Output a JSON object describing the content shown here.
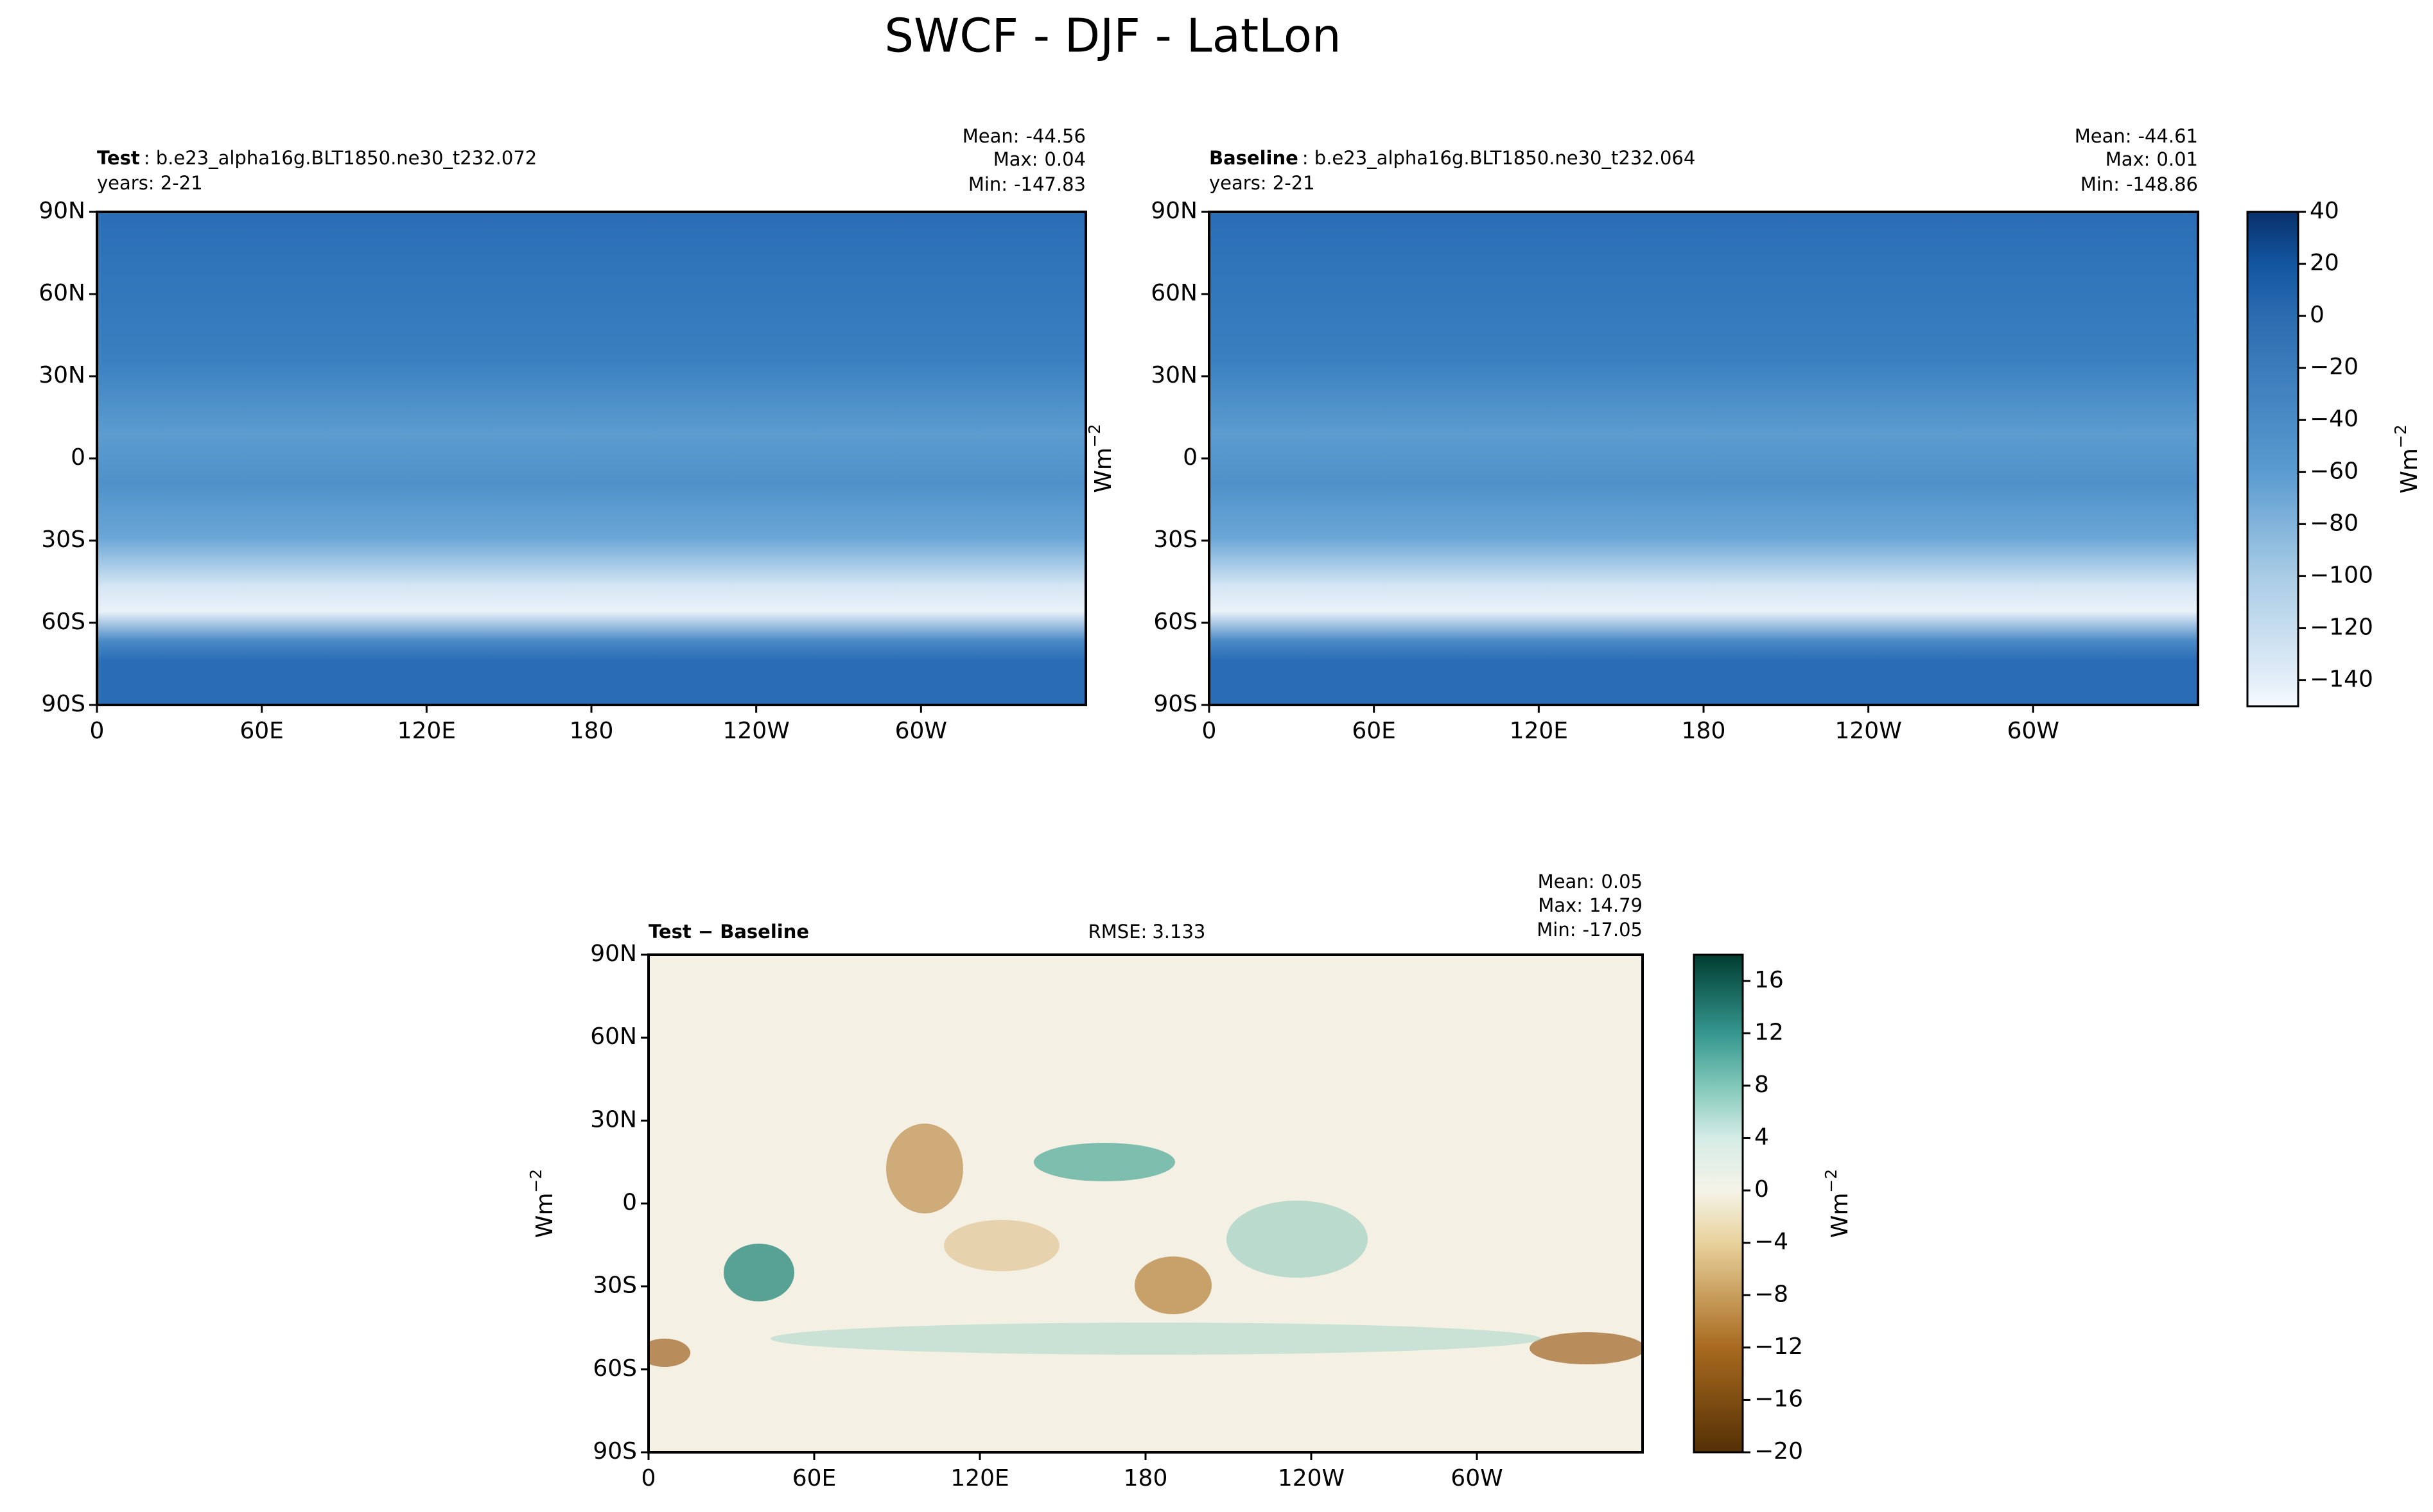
{
  "chart_data": {
    "type": "map",
    "title": "SWCF - DJF - LatLon",
    "xlim": [
      0,
      360
    ],
    "ylim": [
      -90,
      90
    ],
    "xticks": [
      0,
      {
        "value": 60,
        "label": "60E"
      },
      {
        "value": 120,
        "label": "120E"
      },
      180,
      {
        "value": 240,
        "label": "120W"
      },
      {
        "value": 300,
        "label": "60W"
      }
    ],
    "yticks": [
      {
        "value": -90,
        "label": "90S"
      },
      {
        "value": -60,
        "label": "60S"
      },
      {
        "value": -30,
        "label": "30S"
      },
      0,
      {
        "value": 30,
        "label": "30N"
      },
      {
        "value": 60,
        "label": "60N"
      },
      {
        "value": 90,
        "label": "90N"
      }
    ],
    "units": {
      "base": "Wm",
      "exp": "−2"
    },
    "panels": [
      {
        "label": "Test",
        "case": ": b.e23_alpha16g.BLT1850.ne30_t232.072",
        "years": "years: 2-21",
        "stats": [
          {
            "label": "Mean:",
            "value": -44.56
          },
          {
            "label": "Max:",
            "value": 0.04
          },
          {
            "label": "Min:",
            "value": -147.83
          }
        ]
      },
      {
        "label": "Baseline",
        "case": ": b.e23_alpha16g.BLT1850.ne30_t232.064",
        "years": "years: 2-21",
        "stats": [
          {
            "label": "Mean:",
            "value": -44.61
          },
          {
            "label": "Max:",
            "value": 0.01
          },
          {
            "label": "Min:",
            "value": -148.86
          }
        ]
      },
      {
        "label": "Test − Baseline",
        "rmse": {
          "label": "RMSE:",
          "value": 3.133
        },
        "stats": [
          {
            "label": "Mean:",
            "value": 0.05
          },
          {
            "label": "Max:",
            "value": 14.79
          },
          {
            "label": "Min:",
            "value": -17.05
          }
        ]
      }
    ],
    "colorbars": [
      {
        "clim": [
          -150,
          40
        ],
        "ticks": [
          {
            "value": 40,
            "label": "40"
          },
          {
            "value": 20,
            "label": "20"
          },
          {
            "value": 0,
            "label": "0"
          },
          {
            "value": -20,
            "label": "−20"
          },
          {
            "value": -40,
            "label": "−40"
          },
          {
            "value": -60,
            "label": "−60"
          },
          {
            "value": -80,
            "label": "−80"
          },
          {
            "value": -100,
            "label": "−100"
          },
          {
            "value": -120,
            "label": "−120"
          },
          {
            "value": -140,
            "label": "−140"
          }
        ],
        "stops": [
          {
            "value": 40,
            "color": "#08306b"
          },
          {
            "value": 20,
            "color": "#1356a0"
          },
          {
            "value": 0,
            "color": "#2b6cb0"
          },
          {
            "value": -60,
            "color": "#5a9bd0"
          },
          {
            "value": -100,
            "color": "#a9cce5"
          },
          {
            "value": -140,
            "color": "#e3eef8"
          },
          {
            "value": -150,
            "color": "#f7fbff"
          }
        ]
      },
      {
        "clim": [
          -20,
          18
        ],
        "ticks": [
          {
            "value": 16,
            "label": "16"
          },
          {
            "value": 12,
            "label": "12"
          },
          {
            "value": 8,
            "label": "8"
          },
          {
            "value": 4,
            "label": "4"
          },
          {
            "value": 0,
            "label": "0"
          },
          {
            "value": -4,
            "label": "−4"
          },
          {
            "value": -8,
            "label": "−8"
          },
          {
            "value": -12,
            "label": "−12"
          },
          {
            "value": -16,
            "label": "−16"
          },
          {
            "value": -20,
            "label": "−20"
          }
        ],
        "stops": [
          {
            "value": 18,
            "color": "#003c30"
          },
          {
            "value": 12,
            "color": "#35978f"
          },
          {
            "value": 8,
            "color": "#80c7b8"
          },
          {
            "value": 4,
            "color": "#d5ece6"
          },
          {
            "value": 0,
            "color": "#f5f3e8"
          },
          {
            "value": -4,
            "color": "#e8d29c"
          },
          {
            "value": -12,
            "color": "#a86a1f"
          },
          {
            "value": -20,
            "color": "#543005"
          }
        ]
      }
    ]
  }
}
